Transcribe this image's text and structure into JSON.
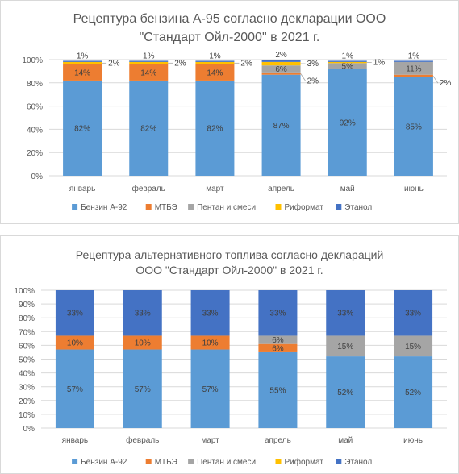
{
  "chart_data": [
    {
      "type": "bar",
      "stacked": true,
      "title_lines": [
        "Рецептура бензина А-95 согласно декларации ООО",
        "\"Стандарт Ойл-2000\" в 2021 г."
      ],
      "categories": [
        "январь",
        "февраль",
        "март",
        "апрель",
        "май",
        "июнь"
      ],
      "yticks": [
        "0%",
        "20%",
        "40%",
        "60%",
        "80%",
        "100%"
      ],
      "ylim": [
        0,
        100
      ],
      "grid": true,
      "legend_position": "bottom",
      "series": [
        {
          "name": "Бензин А-92",
          "color": "#5b9bd5",
          "values": [
            82,
            82,
            82,
            87,
            92,
            85
          ],
          "labels": [
            "82%",
            "82%",
            "82%",
            "87%",
            "92%",
            "85%"
          ]
        },
        {
          "name": "МТБЭ",
          "color": "#ed7d31",
          "values": [
            14,
            14,
            14,
            2,
            0,
            2
          ],
          "labels": [
            "14%",
            "14%",
            "14%",
            "2%",
            "",
            "2%"
          ]
        },
        {
          "name": "Пентан и смеси",
          "color": "#a5a5a5",
          "values": [
            0,
            0,
            0,
            6,
            5,
            11
          ],
          "labels": [
            "",
            "",
            "",
            "6%",
            "5%",
            "11%"
          ]
        },
        {
          "name": "Риформат",
          "color": "#ffc000",
          "values": [
            2,
            2,
            2,
            3,
            1,
            0
          ],
          "labels": [
            "2%",
            "2%",
            "2%",
            "3%",
            "1%",
            ""
          ]
        },
        {
          "name": "Этанол",
          "color": "#4472c4",
          "values": [
            1,
            1,
            1,
            2,
            1,
            1
          ],
          "labels": [
            "1%",
            "1%",
            "1%",
            "2%",
            "1%",
            "1%"
          ]
        }
      ]
    },
    {
      "type": "bar",
      "stacked": true,
      "title_lines": [
        "Рецептура альтернативного топлива согласно деклараций",
        "ООО \"Стандарт Ойл-2000\" в 2021 г."
      ],
      "categories": [
        "январь",
        "февраль",
        "март",
        "апрель",
        "май",
        "июнь"
      ],
      "yticks": [
        "0%",
        "10%",
        "20%",
        "30%",
        "40%",
        "50%",
        "60%",
        "70%",
        "80%",
        "90%",
        "100%"
      ],
      "ylim": [
        0,
        100
      ],
      "grid": true,
      "legend_position": "bottom",
      "series": [
        {
          "name": "Бензин А-92",
          "color": "#5b9bd5",
          "values": [
            57,
            57,
            57,
            55,
            52,
            52
          ],
          "labels": [
            "57%",
            "57%",
            "57%",
            "55%",
            "52%",
            "52%"
          ]
        },
        {
          "name": "МТБЭ",
          "color": "#ed7d31",
          "values": [
            10,
            10,
            10,
            6,
            0,
            0
          ],
          "labels": [
            "10%",
            "10%",
            "10%",
            "6%",
            "",
            ""
          ]
        },
        {
          "name": "Пентан и смеси",
          "color": "#a5a5a5",
          "values": [
            0,
            0,
            0,
            6,
            15,
            15
          ],
          "labels": [
            "",
            "",
            "",
            "6%",
            "15%",
            "15%"
          ]
        },
        {
          "name": "Риформат",
          "color": "#ffc000",
          "values": [
            0,
            0,
            0,
            0,
            0,
            0
          ],
          "labels": [
            "",
            "",
            "",
            "",
            "",
            ""
          ]
        },
        {
          "name": "Этанол",
          "color": "#4472c4",
          "values": [
            33,
            33,
            33,
            33,
            33,
            33
          ],
          "labels": [
            "33%",
            "33%",
            "33%",
            "33%",
            "33%",
            "33%"
          ]
        }
      ]
    }
  ]
}
